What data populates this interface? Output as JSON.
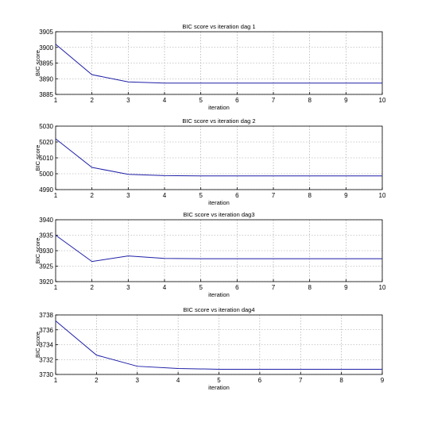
{
  "colors": {
    "line": "#1f1fa8",
    "axes": "#000000",
    "grid": "#9a9a9a",
    "background": "#ffffff"
  },
  "chart_data": [
    {
      "type": "line",
      "title": "BIC score vs iteration dag 1",
      "xlabel": "iteration",
      "ylabel": "BIC score",
      "xlim": [
        1,
        10
      ],
      "ylim": [
        3885,
        3905
      ],
      "xticks": [
        1,
        2,
        3,
        4,
        5,
        6,
        7,
        8,
        9,
        10
      ],
      "yticks": [
        3885,
        3890,
        3895,
        3900,
        3905
      ],
      "grid": true,
      "series": [
        {
          "x": [
            1,
            2,
            3,
            4,
            5,
            6,
            7,
            8,
            9,
            10
          ],
          "y": [
            3901,
            3891.3,
            3889,
            3888.6,
            3888.6,
            3888.6,
            3888.6,
            3888.6,
            3888.6,
            3888.6
          ]
        }
      ]
    },
    {
      "type": "line",
      "title": "BIC score vs iteration dag 2",
      "xlabel": "iteration",
      "ylabel": "BIC score",
      "xlim": [
        1,
        10
      ],
      "ylim": [
        4990,
        5030
      ],
      "xticks": [
        1,
        2,
        3,
        4,
        5,
        6,
        7,
        8,
        9,
        10
      ],
      "yticks": [
        4990,
        5000,
        5010,
        5020,
        5030
      ],
      "grid": true,
      "series": [
        {
          "x": [
            1,
            2,
            3,
            4,
            5,
            6,
            7,
            8,
            9,
            10
          ],
          "y": [
            5022,
            5004,
            4999.6,
            4998.8,
            4998.6,
            4998.6,
            4998.6,
            4998.6,
            4998.6,
            4998.6
          ]
        }
      ]
    },
    {
      "type": "line",
      "title": "BIC score vs iteration dag3",
      "xlabel": "iteration",
      "ylabel": "BIC score",
      "xlim": [
        1,
        10
      ],
      "ylim": [
        3920,
        3940
      ],
      "xticks": [
        1,
        2,
        3,
        4,
        5,
        6,
        7,
        8,
        9,
        10
      ],
      "yticks": [
        3920,
        3925,
        3930,
        3935,
        3940
      ],
      "grid": true,
      "series": [
        {
          "x": [
            1,
            2,
            3,
            4,
            5,
            6,
            7,
            8,
            9,
            10
          ],
          "y": [
            3935,
            3926.5,
            3928.3,
            3927.5,
            3927.4,
            3927.4,
            3927.4,
            3927.4,
            3927.4,
            3927.4
          ]
        }
      ]
    },
    {
      "type": "line",
      "title": "BIC score vs iteration dag4",
      "xlabel": "iteration",
      "ylabel": "BIC score",
      "xlim": [
        1,
        9
      ],
      "ylim": [
        3730,
        3738
      ],
      "xticks": [
        1,
        2,
        3,
        4,
        5,
        6,
        7,
        8,
        9
      ],
      "yticks": [
        3730,
        3732,
        3734,
        3736,
        3738
      ],
      "grid": true,
      "series": [
        {
          "x": [
            1,
            2,
            3,
            4,
            5,
            6,
            7,
            8,
            9
          ],
          "y": [
            3737.2,
            3732.6,
            3731.1,
            3730.8,
            3730.7,
            3730.7,
            3730.7,
            3730.7,
            3730.7
          ]
        }
      ]
    }
  ]
}
